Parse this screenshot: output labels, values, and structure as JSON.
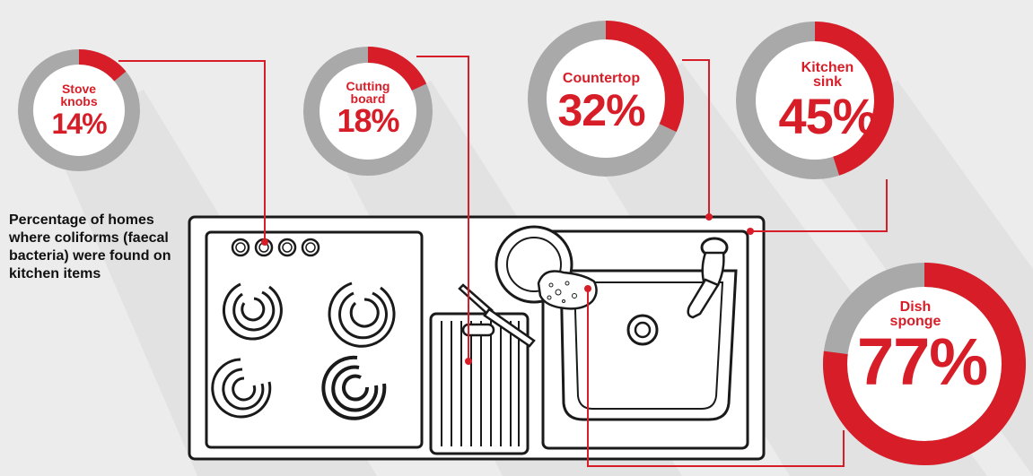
{
  "caption": "Percentage of homes where coliforms (faecal bacteria) were found on kitchen items",
  "colors": {
    "accent": "#d71e28",
    "ring": "#a9a9a9",
    "background": "#ececec",
    "line_art": "#1a1a1a"
  },
  "chart_data": {
    "type": "pie",
    "variant": "donut",
    "title": "Percentage of homes where coliforms (faecal bacteria) were found on kitchen items",
    "unit": "%",
    "items": [
      {
        "label": "Stove knobs",
        "label_lines": [
          "Stove",
          "knobs"
        ],
        "value": 14,
        "display": "14%"
      },
      {
        "label": "Cutting board",
        "label_lines": [
          "Cutting",
          "board"
        ],
        "value": 18,
        "display": "18%"
      },
      {
        "label": "Countertop",
        "label_lines": [
          "Countertop"
        ],
        "value": 32,
        "display": "32%"
      },
      {
        "label": "Kitchen sink",
        "label_lines": [
          "Kitchen",
          "sink"
        ],
        "value": 45,
        "display": "45%"
      },
      {
        "label": "Dish sponge",
        "label_lines": [
          "Dish",
          "sponge"
        ],
        "value": 77,
        "display": "77%"
      }
    ]
  },
  "illustration": {
    "subject": "kitchen counter with stove knobs, four burners, cutting board with knife, plate, sponge and sink with faucet",
    "icons": [
      "stove-knob-icon",
      "burner-icon",
      "cutting-board-icon",
      "knife-icon",
      "plate-icon",
      "sponge-icon",
      "sink-icon",
      "faucet-icon",
      "drain-icon"
    ]
  }
}
